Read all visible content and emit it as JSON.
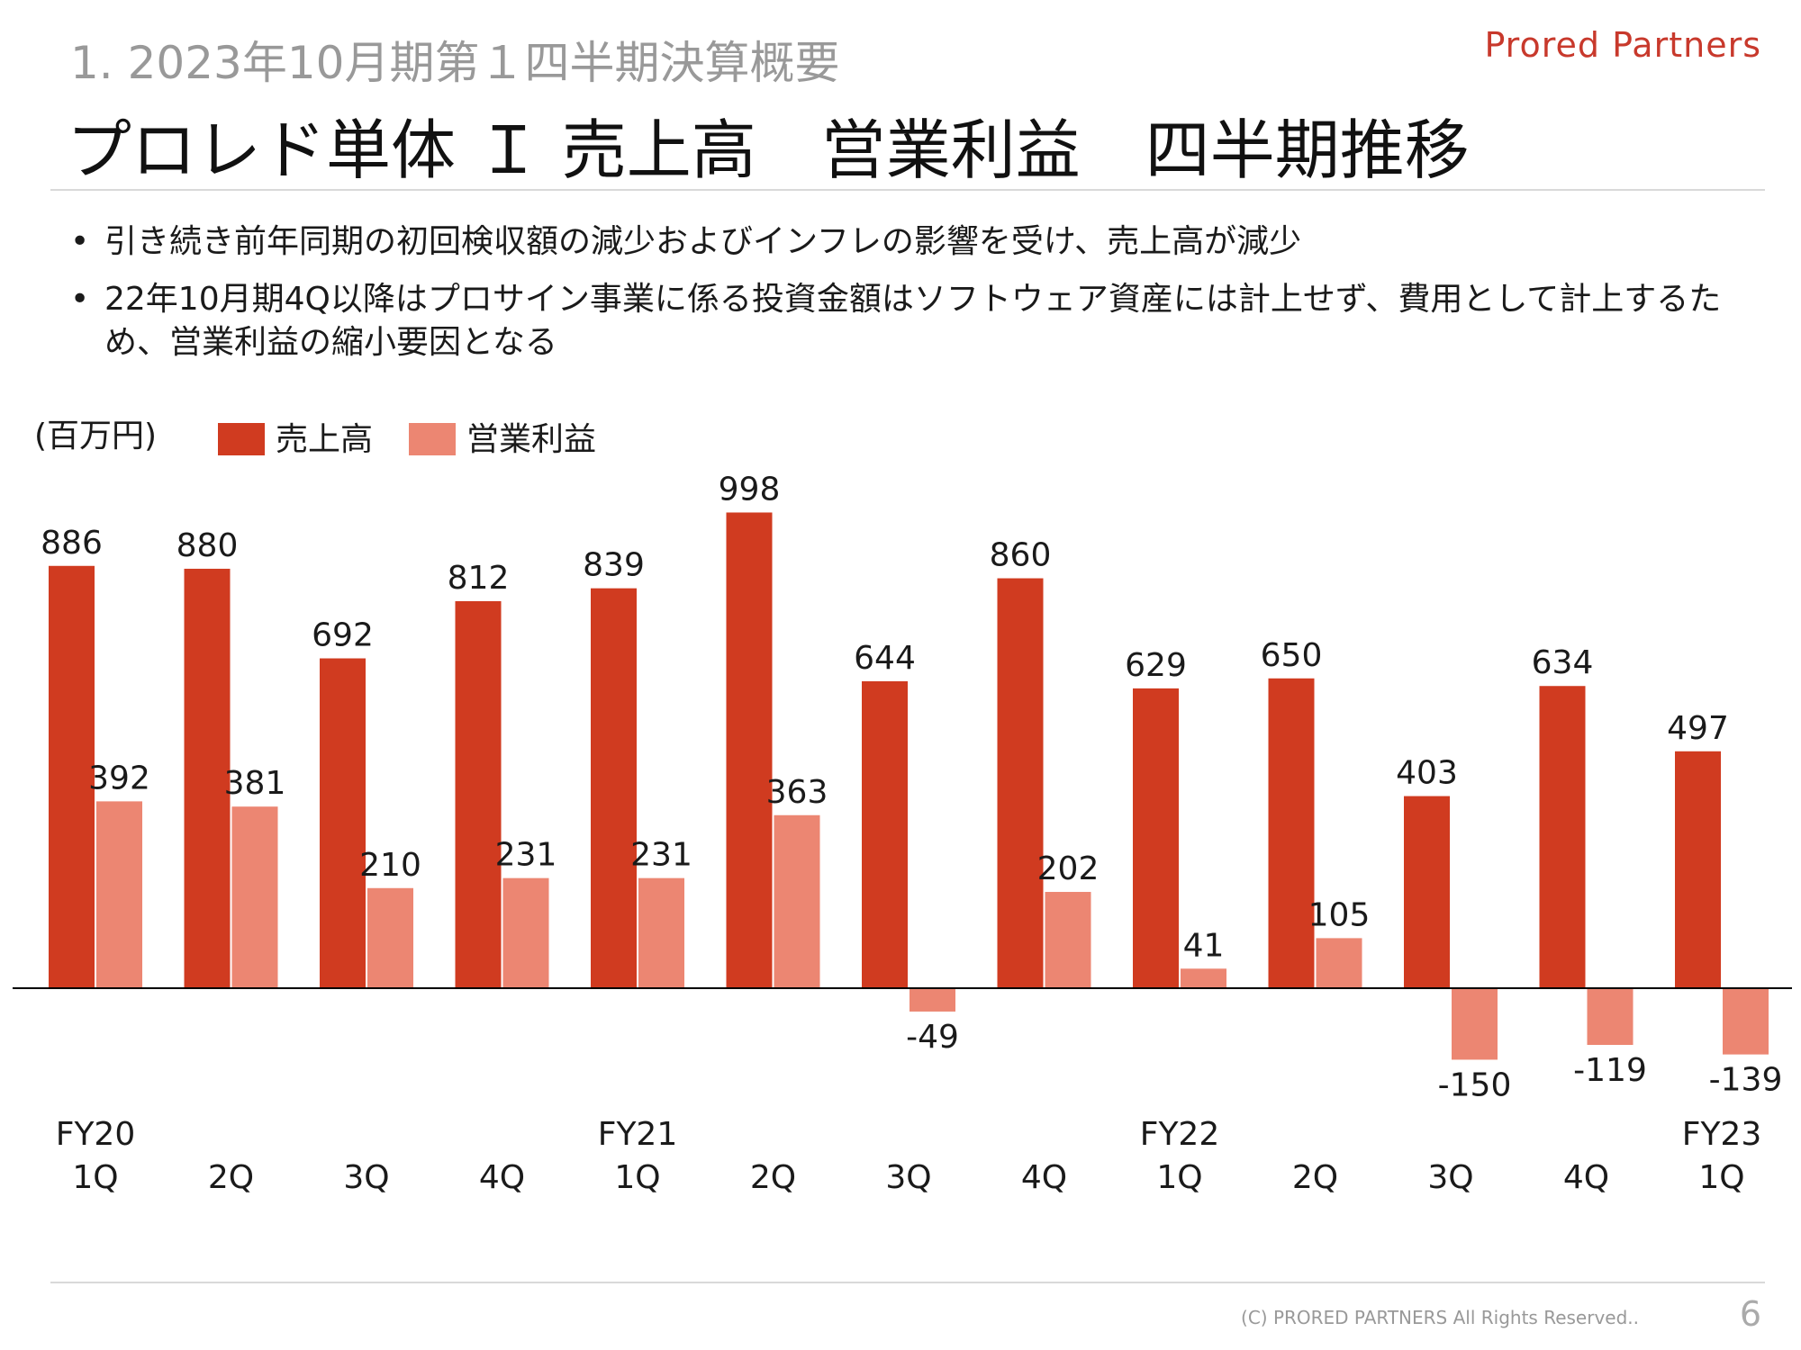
{
  "header": {
    "section_title": "1.  2023年10月期第１四半期決算概要",
    "brand": "Prored Partners",
    "main_title": "プロレド単体 Ｉ 売上高　営業利益　四半期推移"
  },
  "bullets": [
    "引き続き前年同期の初回検収額の減少およびインフレの影響を受け、売上高が減少",
    "22年10月期4Q以降はプロサイン事業に係る投資金額はソフトウェア資産には計上せず、費用として計上するため、営業利益の縮小要因となる"
  ],
  "chart_data": {
    "type": "bar",
    "unit_label": "(百万円)",
    "categories": [
      "FY20 1Q",
      "2Q",
      "3Q",
      "4Q",
      "FY21 1Q",
      "2Q",
      "3Q",
      "4Q",
      "FY22 1Q",
      "2Q",
      "3Q",
      "4Q",
      "FY23 1Q"
    ],
    "category_lines": [
      [
        "FY20",
        "1Q"
      ],
      [
        "",
        "2Q"
      ],
      [
        "",
        "3Q"
      ],
      [
        "",
        "4Q"
      ],
      [
        "FY21",
        "1Q"
      ],
      [
        "",
        "2Q"
      ],
      [
        "",
        "3Q"
      ],
      [
        "",
        "4Q"
      ],
      [
        "FY22",
        "1Q"
      ],
      [
        "",
        "2Q"
      ],
      [
        "",
        "3Q"
      ],
      [
        "",
        "4Q"
      ],
      [
        "FY23",
        "1Q"
      ]
    ],
    "series": [
      {
        "name": "売上高",
        "color": "#d03b20",
        "values": [
          886,
          880,
          692,
          812,
          839,
          998,
          644,
          860,
          629,
          650,
          403,
          634,
          497
        ]
      },
      {
        "name": "営業利益",
        "color": "#ec8672",
        "values": [
          392,
          381,
          210,
          231,
          231,
          363,
          -49,
          202,
          41,
          105,
          -150,
          -119,
          -139
        ]
      }
    ],
    "ylim": [
      -175,
      1000
    ],
    "grid": false,
    "legend_position": "top-left",
    "data_labels": true
  },
  "footer": {
    "copyright": "(C)  PRORED PARTNERS All Rights Reserved..",
    "page": "6"
  }
}
